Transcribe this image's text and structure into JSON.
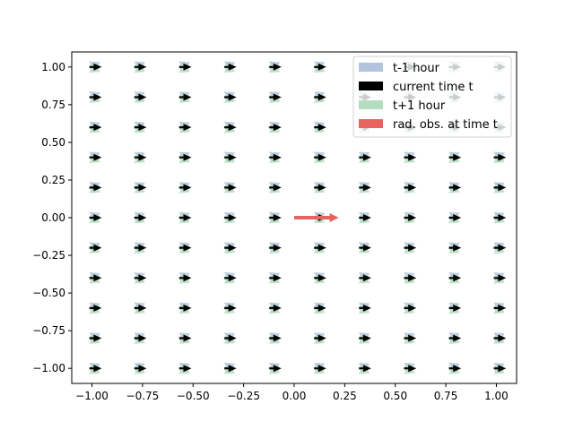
{
  "chart_data": {
    "type": "quiver",
    "title": "",
    "xlabel": "",
    "ylabel": "",
    "xlim": [
      -1.1,
      1.1
    ],
    "ylim": [
      -1.1,
      1.1
    ],
    "grid": false,
    "x_ticks": [
      -1.0,
      -0.75,
      -0.5,
      -0.25,
      0.0,
      0.25,
      0.5,
      0.75,
      1.0
    ],
    "y_ticks": [
      -1.0,
      -0.75,
      -0.5,
      -0.25,
      0.0,
      0.25,
      0.5,
      0.75,
      1.0
    ],
    "x_tick_labels": [
      "−1.00",
      "−0.75",
      "−0.50",
      "−0.25",
      "0.00",
      "0.25",
      "0.50",
      "0.75",
      "1.00"
    ],
    "y_tick_labels": [
      "−1.00",
      "−0.75",
      "−0.50",
      "−0.25",
      "0.00",
      "0.25",
      "0.50",
      "0.75",
      "1.00"
    ],
    "grid_x": [
      -1.0,
      -0.778,
      -0.556,
      -0.333,
      -0.111,
      0.111,
      0.333,
      0.556,
      0.778,
      1.0
    ],
    "grid_y": [
      -1.0,
      -0.8,
      -0.6,
      -0.4,
      -0.2,
      0.0,
      0.2,
      0.4,
      0.6,
      0.8,
      1.0
    ],
    "legend_position": "upper-right",
    "series": [
      {
        "name": "t-1 hour",
        "color": "#b0c4de",
        "u": 0.05,
        "v": 0.03
      },
      {
        "name": "current time t",
        "color": "#000000",
        "u": 0.06,
        "v": 0.0
      },
      {
        "name": "t+1 hour",
        "color": "#b4dcbe",
        "u": 0.05,
        "v": -0.03
      }
    ],
    "observation": {
      "name": "rad. obs. at time t",
      "color": "#e8625f",
      "x": 0.0,
      "y": 0.0,
      "u": 0.22,
      "v": 0.0
    }
  }
}
